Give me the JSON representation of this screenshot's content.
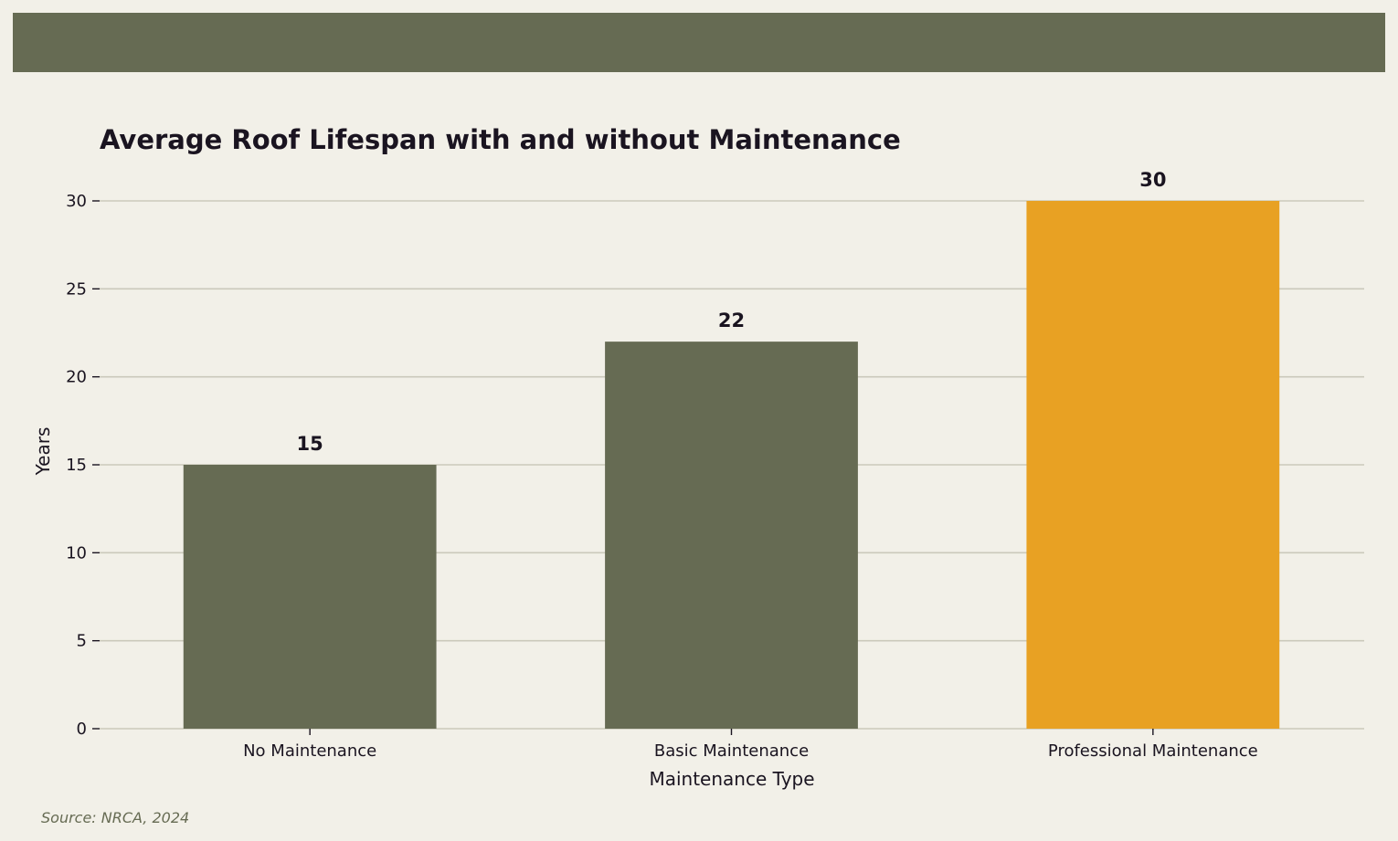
{
  "colors": {
    "background": "#f2f0e8",
    "band": "#666b53",
    "bar_default": "#666b53",
    "bar_highlight": "#e8a123",
    "grid": "#cbc9bb",
    "text": "#1a1420",
    "source_text": "#666b53"
  },
  "source": "Source: NRCA, 2024",
  "chart_data": {
    "type": "bar",
    "title": "Average Roof Lifespan with and without Maintenance",
    "xlabel": "Maintenance Type",
    "ylabel": "Years",
    "categories": [
      "No Maintenance",
      "Basic Maintenance",
      "Professional Maintenance"
    ],
    "values": [
      15,
      22,
      30
    ],
    "data_labels": [
      "15",
      "22",
      "30"
    ],
    "highlight_index": 2,
    "ylim": [
      0,
      30
    ],
    "yticks": [
      0,
      5,
      10,
      15,
      20,
      25,
      30
    ],
    "grid": true,
    "legend": "none"
  }
}
